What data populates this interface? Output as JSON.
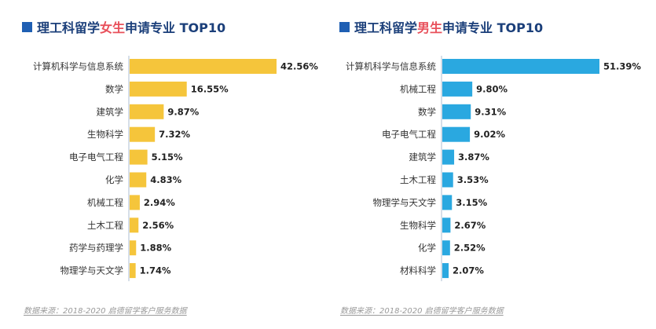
{
  "panels": [
    {
      "title_prefix": "理工科留学",
      "title_highlight": "女生",
      "title_suffix": "申请专业 TOP10",
      "source": "数据来源：2018-2020 启德留学客户服务数据",
      "colors": {
        "bar": "#f5c53b",
        "highlight": "#e8505b",
        "title": "#1b3f7a",
        "square": "#1f5fb3",
        "axis": "#c9d3e0"
      }
    },
    {
      "title_prefix": "理工科留学",
      "title_highlight": "男生",
      "title_suffix": "申请专业 TOP10",
      "source": "数据来源：2018-2020 启德留学客户服务数据",
      "colors": {
        "bar": "#2aa8e0",
        "highlight": "#e8505b",
        "title": "#1b3f7a",
        "square": "#1f5fb3",
        "axis": "#c9d3e0"
      }
    }
  ],
  "chart_data": [
    {
      "type": "bar",
      "orientation": "horizontal",
      "title": "理工科留学女生申请专业 TOP10",
      "categories": [
        "计算机科学与信息系统",
        "数学",
        "建筑学",
        "生物科学",
        "电子电气工程",
        "化学",
        "机械工程",
        "土木工程",
        "药学与药理学",
        "物理学与天文学"
      ],
      "values": [
        42.56,
        16.55,
        9.87,
        7.32,
        5.15,
        4.83,
        2.94,
        2.56,
        1.88,
        1.74
      ],
      "value_labels": [
        "42.56%",
        "16.55%",
        "9.87%",
        "7.32%",
        "5.15%",
        "4.83%",
        "2.94%",
        "2.56%",
        "1.88%",
        "1.74%"
      ],
      "unit": "%",
      "color": "#f5c53b",
      "grid": false
    },
    {
      "type": "bar",
      "orientation": "horizontal",
      "title": "理工科留学男生申请专业 TOP10",
      "categories": [
        "计算机科学与信息系统",
        "机械工程",
        "数学",
        "电子电气工程",
        "建筑学",
        "土木工程",
        "物理学与天文学",
        "生物科学",
        "化学",
        "材料科学"
      ],
      "values": [
        51.39,
        9.8,
        9.31,
        9.02,
        3.87,
        3.53,
        3.15,
        2.67,
        2.52,
        2.07
      ],
      "value_labels": [
        "51.39%",
        "9.80%",
        "9.31%",
        "9.02%",
        "3.87%",
        "3.53%",
        "3.15%",
        "2.67%",
        "2.52%",
        "2.07%"
      ],
      "unit": "%",
      "color": "#2aa8e0",
      "grid": false
    }
  ]
}
